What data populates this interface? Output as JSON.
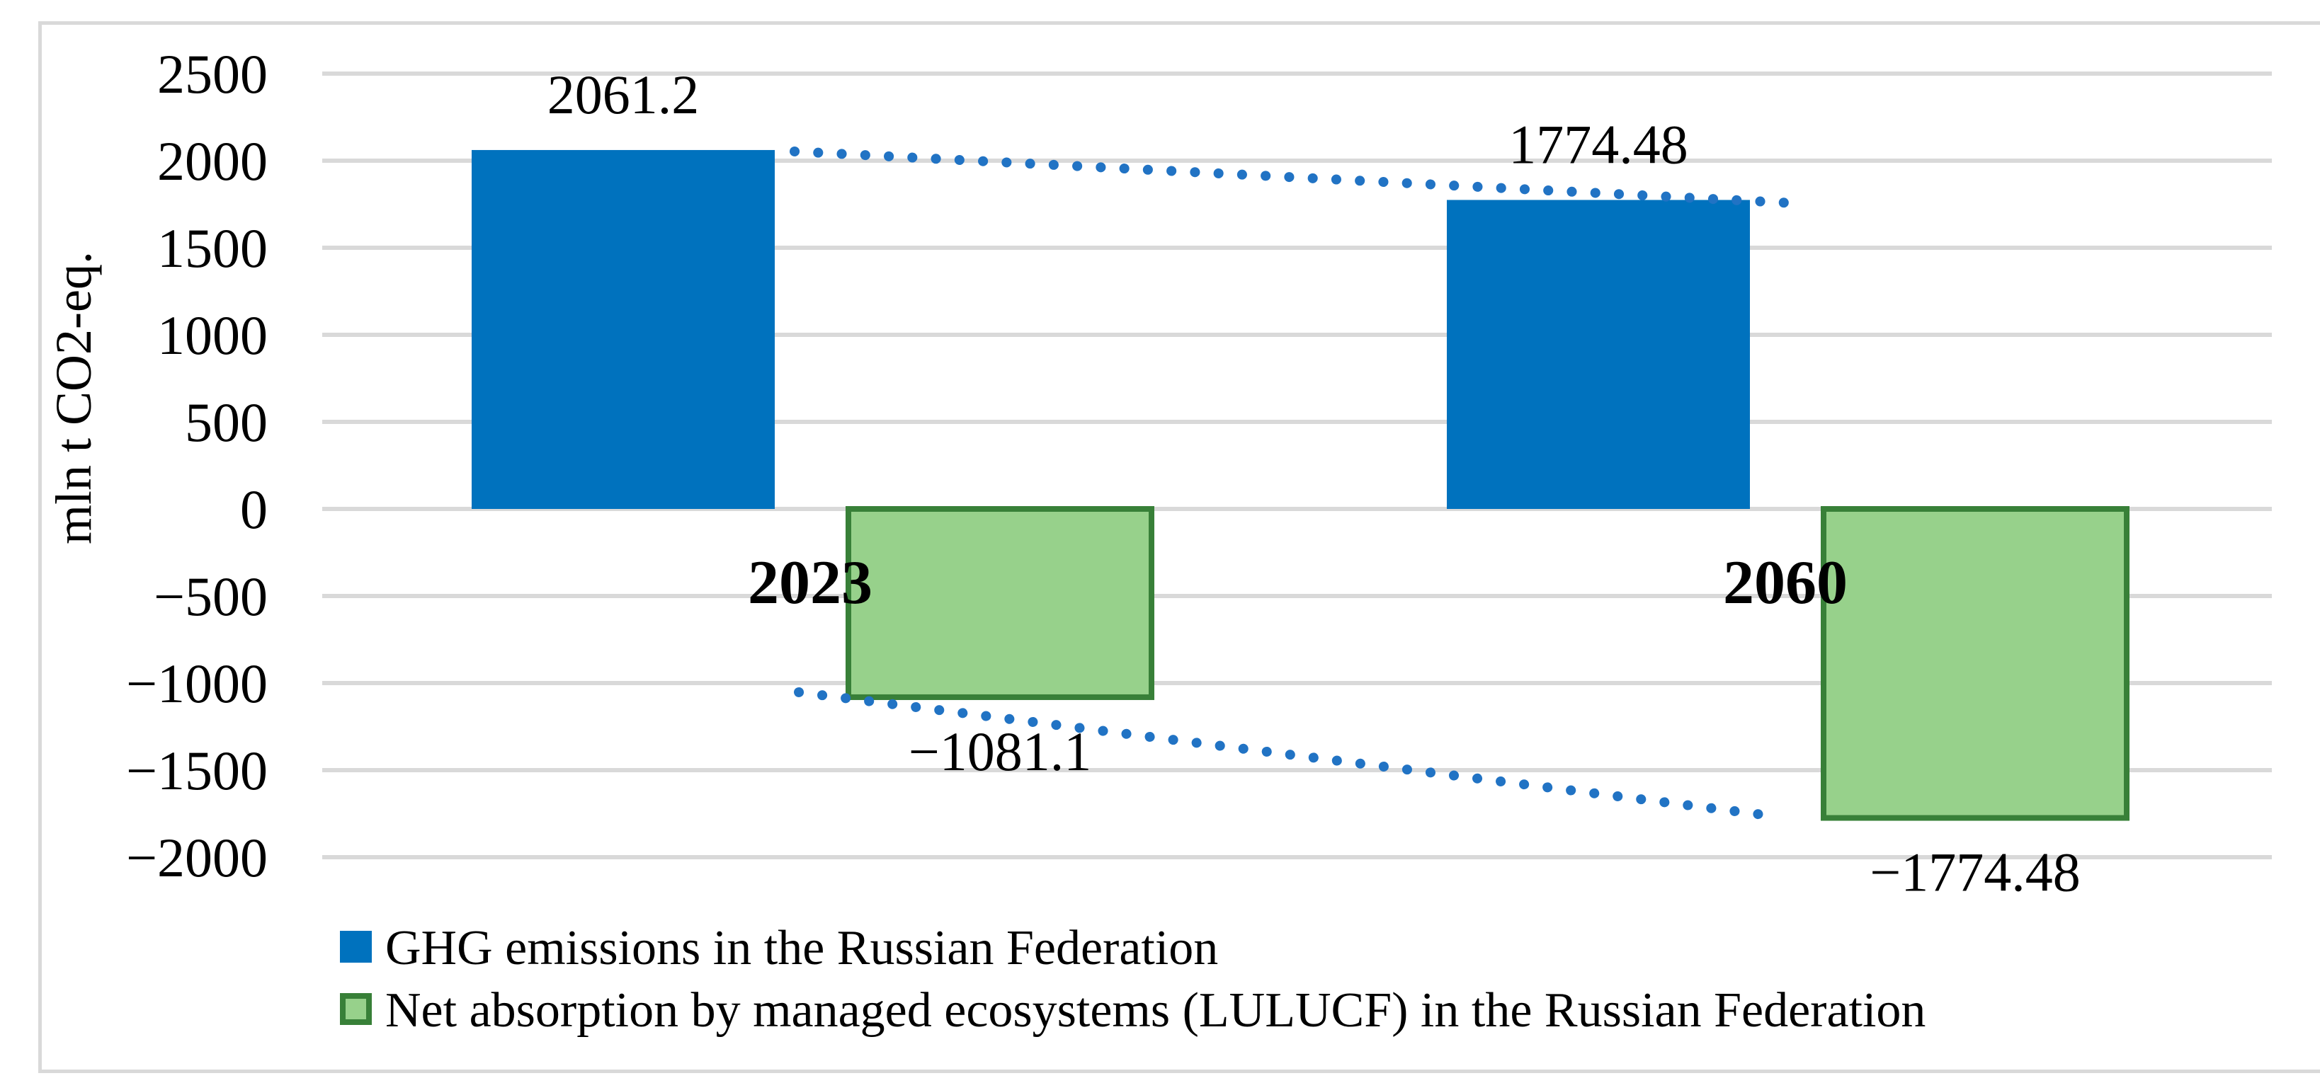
{
  "chart_data": {
    "type": "bar",
    "categories": [
      "2023",
      "2060"
    ],
    "series": [
      {
        "name": "GHG emissions in the Russian Federation",
        "color": "#0072BE",
        "border_color": "none",
        "values": [
          2061.2,
          1774.48
        ],
        "data_labels": [
          "2061.2",
          "1774.48"
        ]
      },
      {
        "name": "Net absorption by managed ecosystems (LULUCF) in the Russian Federation",
        "color": "#97D18B",
        "border_color": "#388038",
        "values": [
          -1081.1,
          -1774.48
        ],
        "data_labels": [
          "−1081.1",
          "−1774.48"
        ]
      }
    ],
    "trend_lines": [
      {
        "series": 0,
        "values": [
          2061.2,
          1774.48
        ],
        "color": "#2173C4",
        "style": "dotted"
      },
      {
        "series": 1,
        "values": [
          -1081.1,
          -1774.48
        ],
        "color": "#2173C4",
        "style": "dotted"
      }
    ],
    "title": "",
    "xlabel": "",
    "ylabel": "mln t CO2-eq.",
    "ylim": [
      -2000,
      2500
    ],
    "ytick_interval": 500,
    "ytick_labels": [
      "2500",
      "2000",
      "1500",
      "1000",
      "500",
      "0",
      "−500",
      "−1000",
      "−1500",
      "−2000"
    ],
    "grid": "horizontal",
    "gridline_color": "#D9D9D9",
    "frame_color": "#D9D9D9",
    "text_color": "#000000",
    "legend_position": "bottom-left",
    "legend": [
      "GHG emissions in the Russian Federation",
      "Net absorption by managed ecosystems (LULUCF) in the Russian Federation"
    ]
  }
}
